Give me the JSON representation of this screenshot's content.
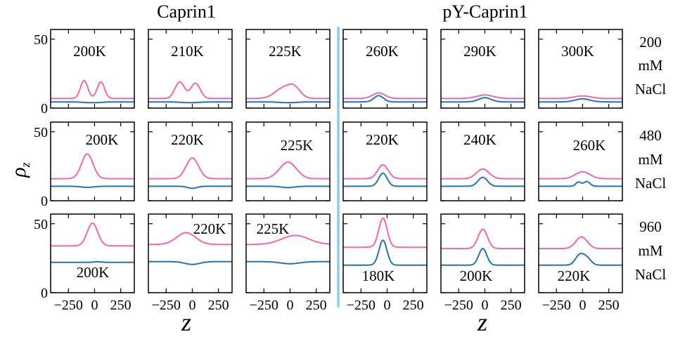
{
  "figure": {
    "left_group_title": "Caprin1",
    "right_group_title": "pY-Caprin1",
    "ylabel": "ρz",
    "xlabel": "z",
    "row_labels": [
      [
        "200",
        "mM",
        "NaCl"
      ],
      [
        "480",
        "mM",
        "NaCl"
      ],
      [
        "960",
        "mM",
        "NaCl"
      ]
    ]
  },
  "colors": {
    "pink": "#f06aaa",
    "blue": "#2a72b0",
    "separator": "#8ecbf0"
  },
  "chart_data": {
    "type": "line",
    "xlim": [
      -420,
      380
    ],
    "ylim": [
      0,
      57
    ],
    "xticks": [
      -250,
      0,
      250
    ],
    "yticks": [
      0,
      50
    ],
    "panels": [
      {
        "row": 0,
        "col": 0,
        "label": "200K",
        "series": [
          {
            "color": "pink",
            "base": 7,
            "peaks": [
              {
                "c": -100,
                "h": 13,
                "w": 35
              },
              {
                "c": 60,
                "h": 12,
                "w": 35
              }
            ]
          },
          {
            "color": "blue",
            "base": 4.5,
            "peaks": [
              {
                "c": -20,
                "h": -0.6,
                "w": 80
              }
            ]
          }
        ]
      },
      {
        "row": 0,
        "col": 1,
        "label": "210K",
        "series": [
          {
            "color": "pink",
            "base": 7,
            "peaks": [
              {
                "c": -120,
                "h": 12,
                "w": 45
              },
              {
                "c": 30,
                "h": 11,
                "w": 45
              }
            ]
          },
          {
            "color": "blue",
            "base": 4.5,
            "peaks": [
              {
                "c": -20,
                "h": -0.6,
                "w": 80
              }
            ]
          }
        ]
      },
      {
        "row": 0,
        "col": 2,
        "label": "225K",
        "series": [
          {
            "color": "pink",
            "base": 7,
            "peaks": [
              {
                "c": -70,
                "h": 7,
                "w": 80
              },
              {
                "c": 40,
                "h": 7,
                "w": 60
              }
            ]
          },
          {
            "color": "blue",
            "base": 4.5,
            "peaks": [
              {
                "c": -20,
                "h": -0.6,
                "w": 80
              }
            ]
          }
        ]
      },
      {
        "row": 0,
        "col": 3,
        "label": "260K",
        "series": [
          {
            "color": "pink",
            "base": 7,
            "peaks": [
              {
                "c": -80,
                "h": 4,
                "w": 60
              }
            ]
          },
          {
            "color": "blue",
            "base": 4.5,
            "peaks": [
              {
                "c": -80,
                "h": 4.5,
                "w": 45
              }
            ]
          }
        ]
      },
      {
        "row": 0,
        "col": 4,
        "label": "290K",
        "series": [
          {
            "color": "pink",
            "base": 7,
            "peaks": [
              {
                "c": 0,
                "h": 2.5,
                "w": 80
              }
            ]
          },
          {
            "color": "blue",
            "base": 4.5,
            "peaks": [
              {
                "c": 0,
                "h": 3,
                "w": 60
              }
            ]
          }
        ]
      },
      {
        "row": 0,
        "col": 5,
        "label": "300K",
        "series": [
          {
            "color": "pink",
            "base": 7,
            "peaks": [
              {
                "c": 0,
                "h": 1.8,
                "w": 80
              }
            ]
          },
          {
            "color": "blue",
            "base": 4.5,
            "peaks": [
              {
                "c": 0,
                "h": 2.2,
                "w": 70
              }
            ]
          }
        ]
      },
      {
        "row": 1,
        "col": 0,
        "label": "200K",
        "series": [
          {
            "color": "pink",
            "base": 16,
            "peaks": [
              {
                "c": -70,
                "h": 18,
                "w": 55
              }
            ]
          },
          {
            "color": "blue",
            "base": 10.5,
            "peaks": [
              {
                "c": -70,
                "h": -0.8,
                "w": 60
              }
            ]
          }
        ]
      },
      {
        "row": 1,
        "col": 1,
        "label": "220K",
        "series": [
          {
            "color": "pink",
            "base": 16,
            "peaks": [
              {
                "c": 0,
                "h": 15,
                "w": 60
              }
            ]
          },
          {
            "color": "blue",
            "base": 10.5,
            "peaks": [
              {
                "c": 0,
                "h": -1.5,
                "w": 45
              }
            ]
          }
        ]
      },
      {
        "row": 1,
        "col": 2,
        "label": "225K",
        "series": [
          {
            "color": "pink",
            "base": 16,
            "peaks": [
              {
                "c": -20,
                "h": 12,
                "w": 80
              }
            ]
          },
          {
            "color": "blue",
            "base": 10.5,
            "peaks": [
              {
                "c": -20,
                "h": -1,
                "w": 60
              }
            ]
          }
        ]
      },
      {
        "row": 1,
        "col": 3,
        "label": "220K",
        "series": [
          {
            "color": "pink",
            "base": 16,
            "peaks": [
              {
                "c": -40,
                "h": 10,
                "w": 50
              }
            ]
          },
          {
            "color": "blue",
            "base": 10.5,
            "peaks": [
              {
                "c": -40,
                "h": 9.5,
                "w": 40
              }
            ]
          }
        ]
      },
      {
        "row": 1,
        "col": 4,
        "label": "240K",
        "series": [
          {
            "color": "pink",
            "base": 16,
            "peaks": [
              {
                "c": -20,
                "h": 7,
                "w": 60
              }
            ]
          },
          {
            "color": "blue",
            "base": 10.5,
            "peaks": [
              {
                "c": -20,
                "h": 6.5,
                "w": 45
              }
            ]
          }
        ]
      },
      {
        "row": 1,
        "col": 5,
        "label": "260K",
        "series": [
          {
            "color": "pink",
            "base": 16,
            "peaks": [
              {
                "c": 0,
                "h": 5,
                "w": 70
              }
            ]
          },
          {
            "color": "blue",
            "base": 10.5,
            "peaks": [
              {
                "c": -40,
                "h": 3,
                "w": 25
              },
              {
                "c": 40,
                "h": 3.5,
                "w": 30
              }
            ]
          }
        ]
      },
      {
        "row": 2,
        "col": 0,
        "label": "200K",
        "series": [
          {
            "color": "pink",
            "base": 34,
            "peaks": [
              {
                "c": -20,
                "h": 16.5,
                "w": 50
              }
            ]
          },
          {
            "color": "blue",
            "base": 22,
            "peaks": [
              {
                "c": 30,
                "h": 0.4,
                "w": 40
              }
            ]
          }
        ]
      },
      {
        "row": 2,
        "col": 1,
        "label": "220K",
        "series": [
          {
            "color": "pink",
            "base": 35,
            "peaks": [
              {
                "c": -60,
                "h": 8.5,
                "w": 90
              }
            ]
          },
          {
            "color": "blue",
            "base": 22.5,
            "peaks": [
              {
                "c": 0,
                "h": -2,
                "w": 70
              }
            ]
          }
        ]
      },
      {
        "row": 2,
        "col": 2,
        "label": "225K",
        "series": [
          {
            "color": "pink",
            "base": 35,
            "peaks": [
              {
                "c": 50,
                "h": 6.5,
                "w": 130
              }
            ]
          },
          {
            "color": "blue",
            "base": 22.5,
            "peaks": [
              {
                "c": 0,
                "h": -1.5,
                "w": 90
              }
            ]
          }
        ]
      },
      {
        "row": 2,
        "col": 3,
        "label": "180K",
        "series": [
          {
            "color": "pink",
            "base": 33,
            "peaks": [
              {
                "c": -40,
                "h": 21,
                "w": 40
              }
            ]
          },
          {
            "color": "blue",
            "base": 20,
            "peaks": [
              {
                "c": -40,
                "h": 18,
                "w": 38
              }
            ]
          }
        ]
      },
      {
        "row": 2,
        "col": 4,
        "label": "200K",
        "series": [
          {
            "color": "pink",
            "base": 32,
            "peaks": [
              {
                "c": -20,
                "h": 14,
                "w": 45
              }
            ]
          },
          {
            "color": "blue",
            "base": 20,
            "peaks": [
              {
                "c": -20,
                "h": 12,
                "w": 38
              }
            ]
          }
        ]
      },
      {
        "row": 2,
        "col": 5,
        "label": "220K",
        "series": [
          {
            "color": "pink",
            "base": 32,
            "peaks": [
              {
                "c": -10,
                "h": 8.5,
                "w": 55
              }
            ]
          },
          {
            "color": "blue",
            "base": 20,
            "peaks": [
              {
                "c": -30,
                "h": 7,
                "w": 40
              },
              {
                "c": 40,
                "h": 5,
                "w": 40
              }
            ]
          }
        ]
      }
    ]
  }
}
